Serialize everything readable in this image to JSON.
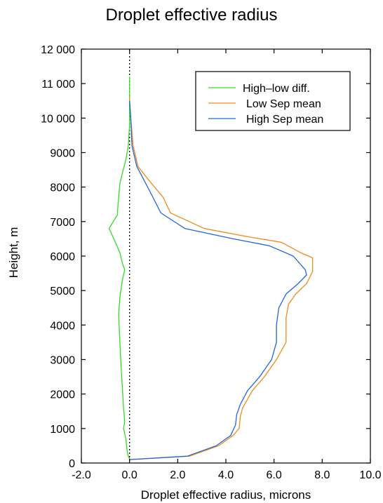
{
  "chart_data": {
    "type": "line",
    "title": "Droplet effective radius",
    "xlabel": "Droplet effective radius, microns",
    "ylabel": "Height, m",
    "xlim": [
      -2.0,
      10.0
    ],
    "ylim": [
      0,
      12000
    ],
    "x_ticks": [
      {
        "value": -2,
        "label": "-2.0"
      },
      {
        "value": 0,
        "label": "0.0"
      },
      {
        "value": 2,
        "label": "2.0"
      },
      {
        "value": 4,
        "label": "4.0"
      },
      {
        "value": 6,
        "label": "6.0"
      },
      {
        "value": 8,
        "label": "8.0"
      },
      {
        "value": 10,
        "label": "10.0"
      }
    ],
    "y_ticks": [
      {
        "value": 0,
        "label": "0"
      },
      {
        "value": 1000,
        "label": "1000"
      },
      {
        "value": 2000,
        "label": "2000"
      },
      {
        "value": 3000,
        "label": "3000"
      },
      {
        "value": 4000,
        "label": "4000"
      },
      {
        "value": 5000,
        "label": "5000"
      },
      {
        "value": 6000,
        "label": "6000"
      },
      {
        "value": 7000,
        "label": "7000"
      },
      {
        "value": 8000,
        "label": "8000"
      },
      {
        "value": 9000,
        "label": "9000"
      },
      {
        "value": 10000,
        "label": "10 000"
      },
      {
        "value": 11000,
        "label": "11 000"
      },
      {
        "value": 12000,
        "label": "12 000"
      }
    ],
    "legend_position": "top-right",
    "reference_line": {
      "x": 0.0,
      "style": "dotted",
      "color": "#000000"
    },
    "series": [
      {
        "name": "High–low diff.",
        "color": "#33dd22",
        "points": [
          [
            0.0,
            11200
          ],
          [
            0.0,
            10500
          ],
          [
            0.0,
            9800
          ],
          [
            -0.05,
            9200
          ],
          [
            -0.15,
            8800
          ],
          [
            -0.3,
            8400
          ],
          [
            -0.4,
            8100
          ],
          [
            -0.45,
            7700
          ],
          [
            -0.5,
            7300
          ],
          [
            -0.5,
            7200
          ],
          [
            -0.85,
            6800
          ],
          [
            -0.65,
            6500
          ],
          [
            -0.4,
            6100
          ],
          [
            -0.3,
            5800
          ],
          [
            -0.2,
            5600
          ],
          [
            -0.3,
            5300
          ],
          [
            -0.4,
            4800
          ],
          [
            -0.45,
            4300
          ],
          [
            -0.4,
            3500
          ],
          [
            -0.35,
            2800
          ],
          [
            -0.3,
            2200
          ],
          [
            -0.25,
            1600
          ],
          [
            -0.2,
            1200
          ],
          [
            -0.25,
            1000
          ],
          [
            -0.15,
            700
          ],
          [
            -0.1,
            350
          ],
          [
            -0.05,
            200
          ],
          [
            0.0,
            120
          ],
          [
            0.0,
            100
          ]
        ]
      },
      {
        "name": "Low Sep mean",
        "color": "#f08a1e",
        "points": [
          [
            0.0,
            10600
          ],
          [
            0.05,
            10000
          ],
          [
            0.15,
            9200
          ],
          [
            0.35,
            8600
          ],
          [
            0.8,
            8200
          ],
          [
            1.4,
            7700
          ],
          [
            1.7,
            7250
          ],
          [
            3.1,
            6800
          ],
          [
            5.0,
            6550
          ],
          [
            6.3,
            6400
          ],
          [
            7.1,
            6100
          ],
          [
            7.6,
            5950
          ],
          [
            7.6,
            5550
          ],
          [
            7.35,
            5200
          ],
          [
            6.9,
            4900
          ],
          [
            6.6,
            4600
          ],
          [
            6.5,
            4200
          ],
          [
            6.5,
            3500
          ],
          [
            6.1,
            3000
          ],
          [
            5.6,
            2500
          ],
          [
            5.1,
            2100
          ],
          [
            4.7,
            1600
          ],
          [
            4.6,
            1350
          ],
          [
            4.55,
            1000
          ],
          [
            4.3,
            800
          ],
          [
            3.7,
            500
          ],
          [
            2.5,
            200
          ],
          [
            0.0,
            100
          ]
        ]
      },
      {
        "name": "High Sep mean",
        "color": "#2266dd",
        "points": [
          [
            0.0,
            10500
          ],
          [
            0.05,
            10000
          ],
          [
            0.1,
            9200
          ],
          [
            0.3,
            8600
          ],
          [
            0.6,
            8200
          ],
          [
            0.9,
            7800
          ],
          [
            1.3,
            7250
          ],
          [
            2.3,
            6800
          ],
          [
            4.3,
            6500
          ],
          [
            5.8,
            6300
          ],
          [
            6.8,
            6000
          ],
          [
            7.3,
            5600
          ],
          [
            7.35,
            5450
          ],
          [
            7.0,
            5200
          ],
          [
            6.5,
            4900
          ],
          [
            6.2,
            4500
          ],
          [
            6.1,
            4000
          ],
          [
            6.1,
            3500
          ],
          [
            5.9,
            3000
          ],
          [
            5.4,
            2500
          ],
          [
            4.9,
            2100
          ],
          [
            4.6,
            1700
          ],
          [
            4.45,
            1400
          ],
          [
            4.4,
            1100
          ],
          [
            4.2,
            800
          ],
          [
            3.6,
            500
          ],
          [
            2.4,
            200
          ],
          [
            0.0,
            100
          ]
        ]
      }
    ]
  }
}
